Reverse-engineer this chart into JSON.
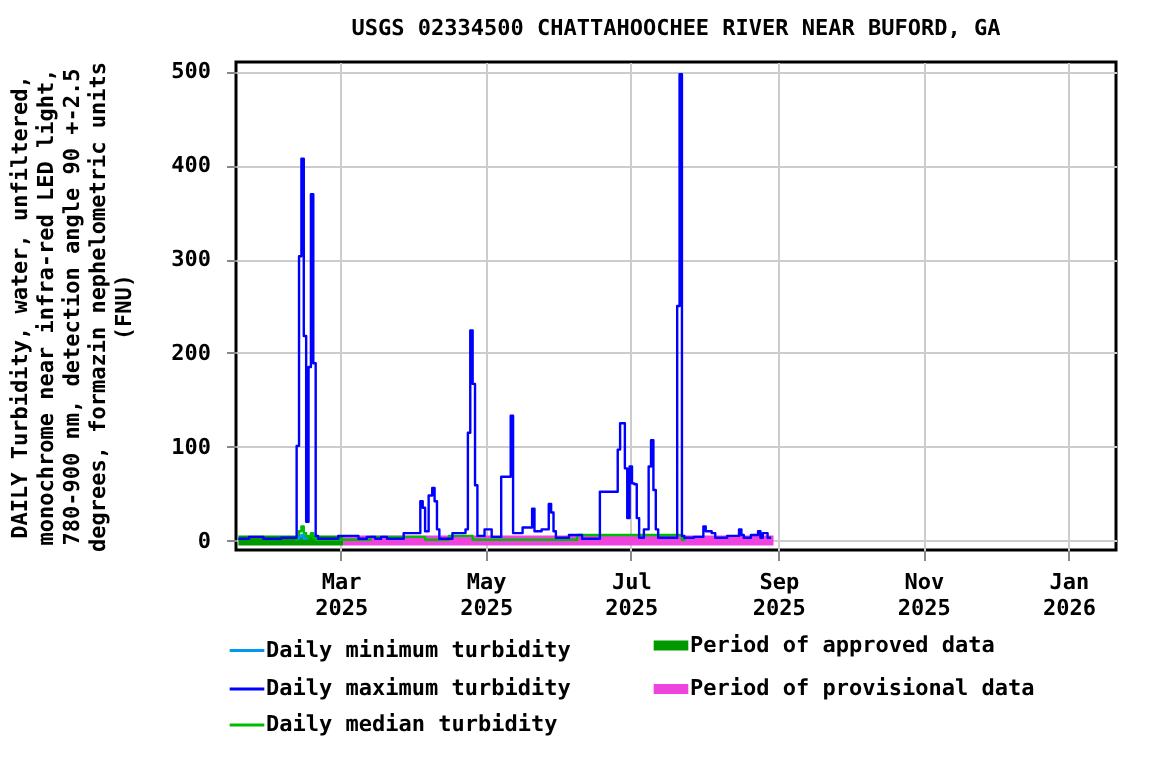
{
  "chart_data": {
    "type": "step",
    "title": "USGS 02334500 CHATTAHOOCHEE RIVER NEAR BUFORD, GA",
    "ylabel": "DAILY Turbidity, water, unfiltered, monochrome near infra-red LED light, 780-900 nm, detection angle 90 +-2.5 degrees, formazin nephelometric units (FNU)",
    "xlim": [
      "2025-01-16",
      "2026-01-21"
    ],
    "xticks": [
      {
        "value": "2025-03-01",
        "label": "Mar 2025"
      },
      {
        "value": "2025-05-01",
        "label": "May 2025"
      },
      {
        "value": "2025-07-01",
        "label": "Jul 2025"
      },
      {
        "value": "2025-09-01",
        "label": "Sep 2025"
      },
      {
        "value": "2025-11-01",
        "label": "Nov 2025"
      },
      {
        "value": "2026-01-01",
        "label": "Jan 2026"
      }
    ],
    "ylim": [
      -10,
      510
    ],
    "yticks": [
      0,
      100,
      200,
      300,
      400,
      500
    ],
    "grid": true,
    "legend": "bottom",
    "series": [
      {
        "name": "Period of approved data",
        "type": "line",
        "color": "#009900",
        "x": [
          "2025-01-17",
          "2025-03-02"
        ],
        "values": [
          0,
          0
        ]
      },
      {
        "name": "Period of provisional data",
        "type": "line",
        "color": "#ee44dd",
        "x": [
          "2025-03-02",
          "2025-08-30"
        ],
        "values": [
          0,
          0
        ]
      },
      {
        "name": "Daily minimum turbidity",
        "color": "#0099ee",
        "x": [
          "2025-02-11",
          "2025-02-12",
          "2025-02-13",
          "2025-02-14",
          "2025-02-15"
        ],
        "values": [
          2,
          4,
          6,
          2,
          2
        ]
      },
      {
        "name": "Daily maximum turbidity",
        "color": "#0000ff",
        "x": [
          "2025-01-17",
          "2025-01-26",
          "2025-01-29",
          "2025-02-10",
          "2025-02-11",
          "2025-02-12",
          "2025-02-13",
          "2025-02-14",
          "2025-02-15",
          "2025-02-16",
          "2025-02-17",
          "2025-02-18",
          "2025-02-19",
          "2025-02-20",
          "2025-03-08",
          "2025-03-09",
          "2025-03-15",
          "2025-03-16",
          "2025-03-20",
          "2025-03-21",
          "2025-04-03",
          "2025-04-04",
          "2025-04-05",
          "2025-04-06",
          "2025-04-08",
          "2025-04-09",
          "2025-04-10",
          "2025-04-11",
          "2025-04-12",
          "2025-04-22",
          "2025-04-23",
          "2025-04-24",
          "2025-04-25",
          "2025-04-26",
          "2025-04-27",
          "2025-04-28",
          "2025-05-03",
          "2025-05-04",
          "2025-05-11",
          "2025-05-12",
          "2025-05-13",
          "2025-05-20",
          "2025-05-21",
          "2025-05-22",
          "2025-05-27",
          "2025-05-28",
          "2025-05-29",
          "2025-05-30",
          "2025-05-31",
          "2025-06-10",
          "2025-06-11",
          "2025-06-25",
          "2025-06-26",
          "2025-06-27",
          "2025-06-28",
          "2025-06-29",
          "2025-06-30",
          "2025-07-01",
          "2025-07-02",
          "2025-07-03",
          "2025-07-04",
          "2025-07-05",
          "2025-07-08",
          "2025-07-09",
          "2025-07-10",
          "2025-07-11",
          "2025-07-12",
          "2025-07-13",
          "2025-07-20",
          "2025-07-21",
          "2025-07-22",
          "2025-07-23",
          "2025-07-24",
          "2025-07-31",
          "2025-08-01",
          "2025-08-02",
          "2025-08-03",
          "2025-08-05",
          "2025-08-06",
          "2025-08-15",
          "2025-08-16",
          "2025-08-17",
          "2025-08-18",
          "2025-08-23",
          "2025-08-24",
          "2025-08-25",
          "2025-08-26",
          "2025-08-29"
        ],
        "values": [
          2,
          4,
          2,
          3,
          101,
          303,
          407,
          218,
          20,
          185,
          369,
          189,
          5,
          2,
          5,
          2,
          4,
          2,
          4,
          2,
          8,
          42,
          35,
          10,
          48,
          56,
          42,
          12,
          2,
          8,
          12,
          115,
          224,
          167,
          59,
          5,
          12,
          4,
          68,
          133,
          8,
          14,
          34,
          10,
          12,
          39,
          30,
          10,
          3,
          6,
          2,
          52,
          97,
          125,
          125,
          77,
          24,
          79,
          61,
          60,
          24,
          3,
          12,
          79,
          107,
          54,
          12,
          3,
          3,
          250,
          497,
          5,
          3,
          4,
          15,
          10,
          10,
          8,
          3,
          5,
          12,
          6,
          3,
          6,
          10,
          3,
          8,
          3
        ]
      },
      {
        "name": "Daily median turbidity",
        "color": "#00bb00",
        "x": [
          "2025-02-10",
          "2025-02-11",
          "2025-02-12",
          "2025-02-13",
          "2025-02-14",
          "2025-02-15",
          "2025-02-16",
          "2025-02-17",
          "2025-02-18",
          "2025-02-19",
          "2025-04-05",
          "2025-04-06",
          "2025-04-25",
          "2025-04-26",
          "2025-07-22",
          "2025-07-23",
          "2025-07-24"
        ],
        "values": [
          1,
          3,
          10,
          15,
          8,
          3,
          5,
          8,
          3,
          1,
          4,
          1,
          5,
          1,
          6,
          1,
          1
        ]
      }
    ]
  }
}
